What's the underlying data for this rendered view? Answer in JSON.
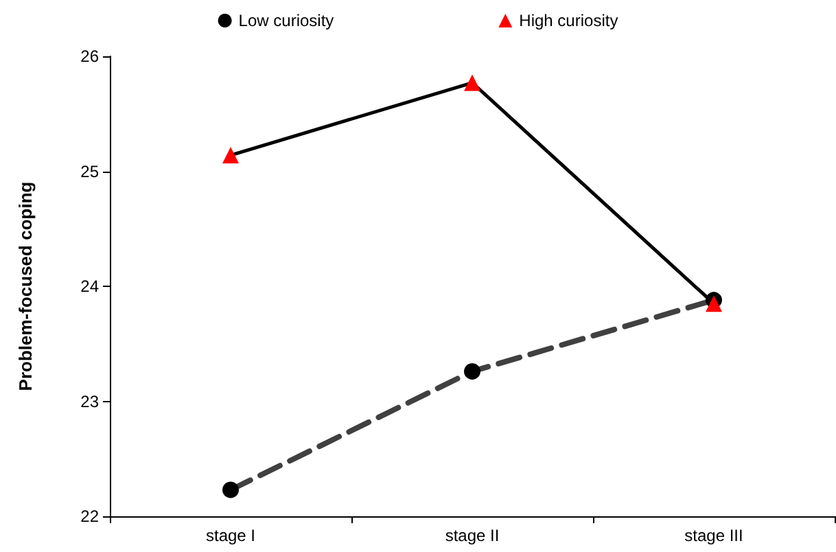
{
  "chart_data": {
    "type": "line",
    "ylabel": "Problem-focused coping",
    "categories": [
      "stage I",
      "stage II",
      "stage III"
    ],
    "series": [
      {
        "name": "Low curiosity",
        "color": "#404040",
        "colors": [
          "#000000",
          "#000000",
          "#000000"
        ],
        "marker": "circle",
        "line_style": "dashed",
        "values": [
          22.23,
          23.26,
          23.88
        ]
      },
      {
        "name": "High curiosity",
        "color": "#000000",
        "colors": [
          "#ff0000",
          "#ff0000",
          "#ff0000"
        ],
        "marker": "triangle",
        "line_style": "solid",
        "values": [
          25.14,
          25.77,
          23.85
        ]
      }
    ],
    "ylim": [
      22,
      26
    ],
    "yticks": [
      22,
      23,
      24,
      25,
      26
    ],
    "grid": false,
    "legend": "top"
  }
}
